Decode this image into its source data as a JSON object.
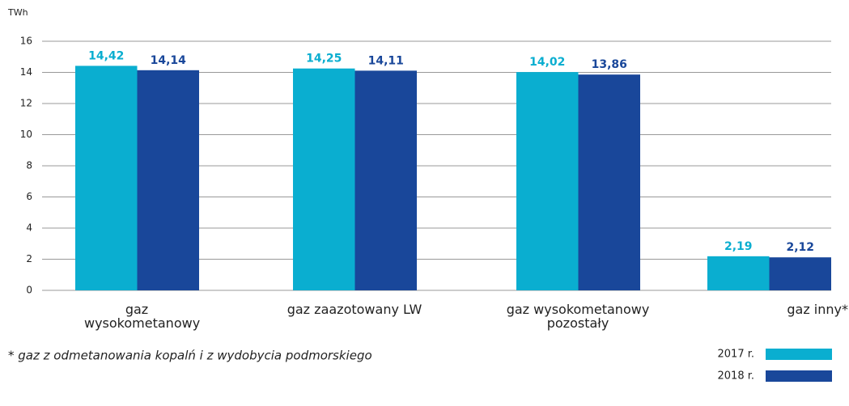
{
  "chart_data": {
    "type": "bar",
    "unit": "TWh",
    "categories": [
      "gaz wysokometanowy",
      "gaz zaazotowany LW",
      "gaz wysokometanowy pozostały",
      "gaz inny*"
    ],
    "series": [
      {
        "name": "2017 r.",
        "color": "#0aaed0",
        "values": [
          14.42,
          14.25,
          14.02,
          2.19
        ],
        "value_labels": [
          "14,42",
          "14,25",
          "14,02",
          "2,19"
        ]
      },
      {
        "name": "2018 r.",
        "color": "#19479a",
        "values": [
          14.14,
          14.11,
          13.86,
          2.12
        ],
        "value_labels": [
          "14,14",
          "14,11",
          "13,86",
          "2,12"
        ]
      }
    ],
    "ylim": [
      0,
      16
    ],
    "yticks": [
      0,
      2,
      4,
      6,
      8,
      10,
      12,
      14,
      16
    ],
    "grid": true,
    "footnote": "* gaz z odmetanowania kopalń i z wydobycia podmorskiego",
    "legend": "bottom-right"
  }
}
